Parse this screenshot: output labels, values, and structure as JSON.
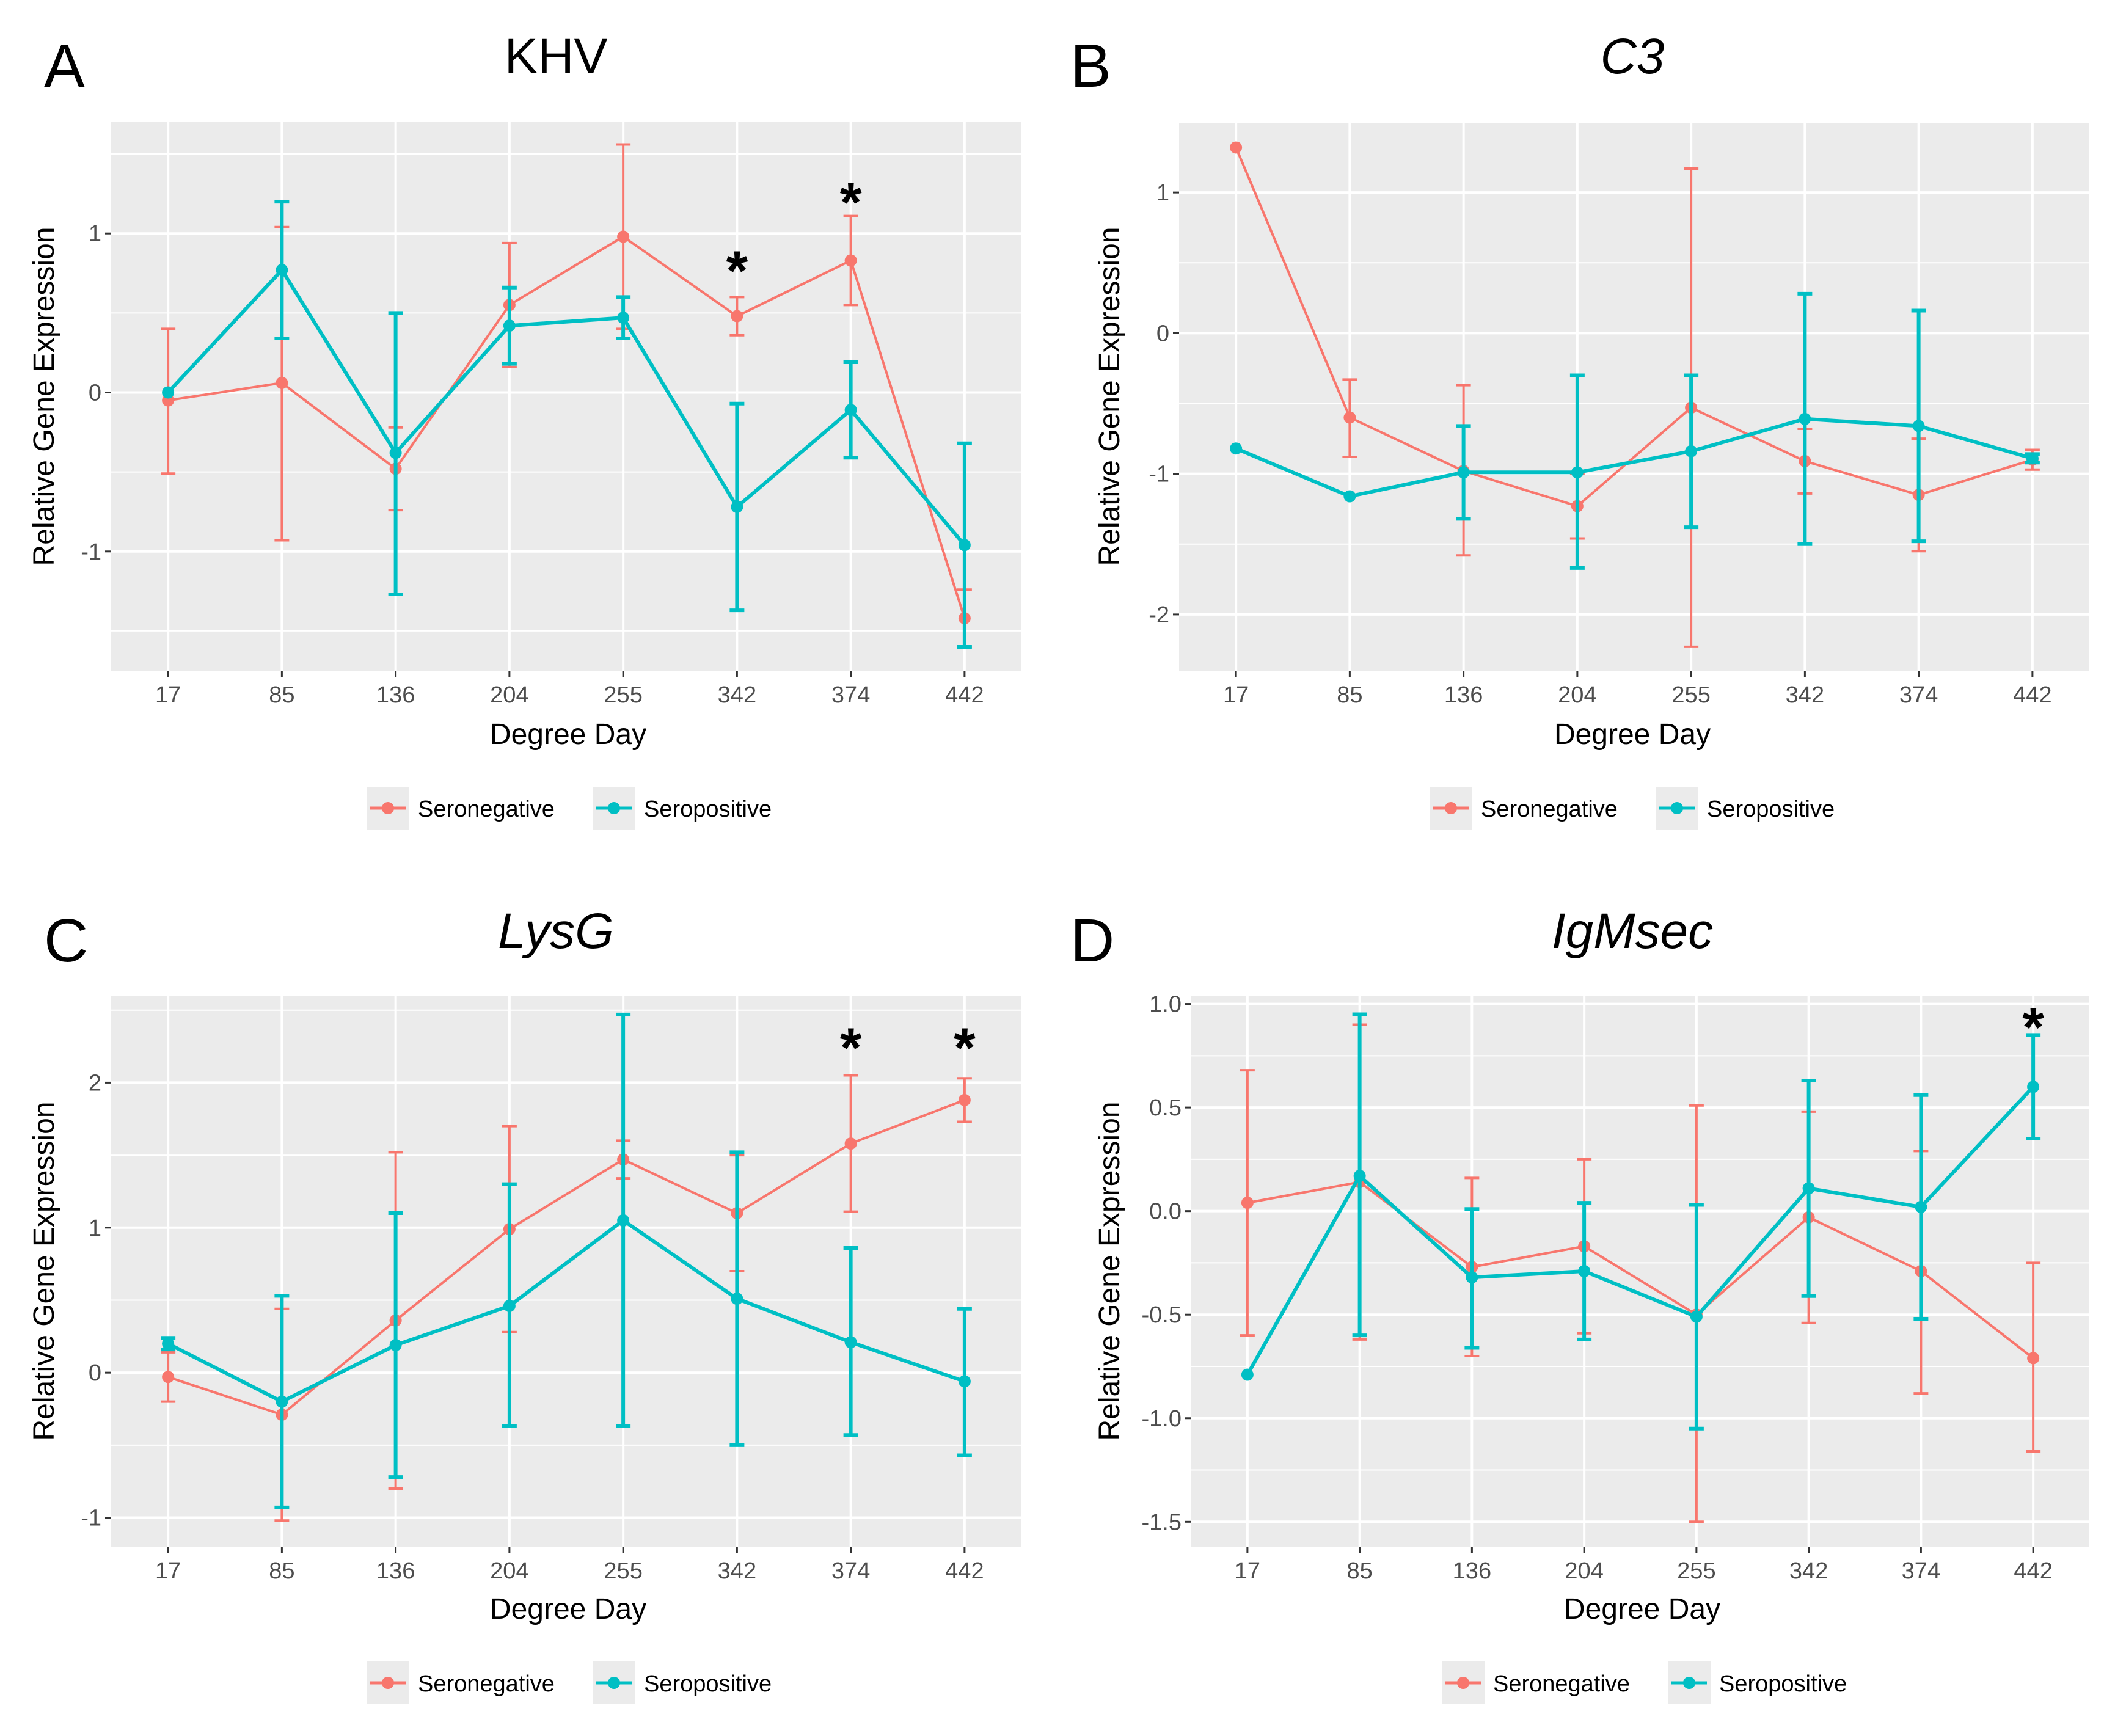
{
  "colors": {
    "seronegative": "#F8766D",
    "seropositive": "#00BFC4",
    "panel_bg": "#EBEBEB",
    "grid": "#FFFFFF"
  },
  "legend": {
    "items": [
      "Seronegative",
      "Seropositive"
    ]
  },
  "chart_data": [
    {
      "letter": "A",
      "title": "KHV",
      "title_italic": false,
      "type": "line",
      "xlabel": "Degree Day",
      "ylabel": "Relative Gene Expression",
      "categories": [
        "17",
        "85",
        "136",
        "204",
        "255",
        "342",
        "374",
        "442"
      ],
      "ylim": [
        -1.75,
        1.7
      ],
      "yticks": [
        -1,
        0,
        1
      ],
      "ytick_labels": [
        "-1",
        "0",
        "1"
      ],
      "series": [
        {
          "name": "Seronegative",
          "values": [
            -0.05,
            0.06,
            -0.48,
            0.55,
            0.98,
            0.48,
            0.83,
            -1.42
          ],
          "lower": [
            -0.51,
            -0.93,
            -0.74,
            0.16,
            0.4,
            0.36,
            0.55,
            -1.6
          ],
          "upper": [
            0.4,
            1.04,
            -0.22,
            0.94,
            1.56,
            0.6,
            1.11,
            -1.24
          ]
        },
        {
          "name": "Seropositive",
          "values": [
            0.0,
            0.77,
            -0.38,
            0.42,
            0.47,
            -0.72,
            -0.11,
            -0.96
          ],
          "lower": [
            0.0,
            0.34,
            -1.27,
            0.18,
            0.34,
            -1.37,
            -0.41,
            -1.6
          ],
          "upper": [
            0.0,
            1.2,
            0.5,
            0.66,
            0.6,
            -0.07,
            0.19,
            -0.32
          ]
        }
      ],
      "annotations": [
        {
          "label": "*",
          "x": "342",
          "y": 0.82
        },
        {
          "label": "*",
          "x": "374",
          "y": 1.25
        }
      ]
    },
    {
      "letter": "B",
      "title": "C3",
      "title_italic": true,
      "type": "line",
      "xlabel": "Degree Day",
      "ylabel": "Relative Gene Expression",
      "categories": [
        "17",
        "85",
        "136",
        "204",
        "255",
        "342",
        "374",
        "442"
      ],
      "ylim": [
        -2.4,
        1.5
      ],
      "yticks": [
        -2,
        -1,
        0,
        1
      ],
      "ytick_labels": [
        "-2",
        "-1",
        "0",
        "1"
      ],
      "series": [
        {
          "name": "Seronegative",
          "values": [
            1.32,
            -0.6,
            -0.98,
            -1.23,
            -0.53,
            -0.91,
            -1.15,
            -0.9
          ],
          "lower": [
            1.32,
            -0.88,
            -1.58,
            -1.46,
            -2.23,
            -1.14,
            -1.55,
            -0.97
          ],
          "upper": [
            1.32,
            -0.33,
            -0.37,
            -1.0,
            1.17,
            -0.68,
            -0.75,
            -0.83
          ]
        },
        {
          "name": "Seropositive",
          "values": [
            -0.82,
            -1.16,
            -0.99,
            -0.99,
            -0.84,
            -0.61,
            -0.66,
            -0.89
          ],
          "lower": [
            -0.82,
            -1.16,
            -1.32,
            -1.67,
            -1.38,
            -1.5,
            -1.48,
            -0.92
          ],
          "upper": [
            -0.82,
            -1.16,
            -0.66,
            -0.3,
            -0.3,
            0.28,
            0.16,
            -0.86
          ]
        }
      ],
      "annotations": []
    },
    {
      "letter": "C",
      "title": "LysG",
      "title_italic": true,
      "type": "line",
      "xlabel": "Degree Day",
      "ylabel": "Relative Gene Expression",
      "categories": [
        "17",
        "85",
        "136",
        "204",
        "255",
        "342",
        "374",
        "442"
      ],
      "ylim": [
        -1.2,
        2.6
      ],
      "yticks": [
        -1,
        0,
        1,
        2
      ],
      "ytick_labels": [
        "-1",
        "0",
        "1",
        "2"
      ],
      "series": [
        {
          "name": "Seronegative",
          "values": [
            -0.03,
            -0.29,
            0.36,
            0.99,
            1.47,
            1.1,
            1.58,
            1.88
          ],
          "lower": [
            -0.2,
            -1.02,
            -0.8,
            0.28,
            1.34,
            0.7,
            1.11,
            1.73
          ],
          "upper": [
            0.14,
            0.44,
            1.52,
            1.7,
            1.6,
            1.5,
            2.05,
            2.03
          ]
        },
        {
          "name": "Seropositive",
          "values": [
            0.2,
            -0.2,
            0.19,
            0.46,
            1.05,
            0.51,
            0.21,
            -0.06
          ],
          "lower": [
            0.16,
            -0.93,
            -0.72,
            -0.37,
            -0.37,
            -0.5,
            -0.43,
            -0.57
          ],
          "upper": [
            0.24,
            0.53,
            1.1,
            1.3,
            2.47,
            1.52,
            0.86,
            0.44
          ]
        }
      ],
      "annotations": [
        {
          "label": "*",
          "x": "374",
          "y": 2.3
        },
        {
          "label": "*",
          "x": "442",
          "y": 2.3
        }
      ]
    },
    {
      "letter": "D",
      "title": "IgMsec",
      "title_italic": true,
      "type": "line",
      "xlabel": "Degree Day",
      "ylabel": "Relative Gene Expression",
      "categories": [
        "17",
        "85",
        "136",
        "204",
        "255",
        "342",
        "374",
        "442"
      ],
      "ylim": [
        -1.62,
        1.04
      ],
      "yticks": [
        -1.5,
        -1.0,
        -0.5,
        0.0,
        0.5,
        1.0
      ],
      "ytick_labels": [
        "-1.5",
        "-1.0",
        "-0.5",
        "0.0",
        "0.5",
        "1.0"
      ],
      "series": [
        {
          "name": "Seronegative",
          "values": [
            0.04,
            0.14,
            -0.27,
            -0.17,
            -0.5,
            -0.03,
            -0.29,
            -0.71
          ],
          "lower": [
            -0.6,
            -0.62,
            -0.7,
            -0.59,
            -1.5,
            -0.54,
            -0.88,
            -1.16
          ],
          "upper": [
            0.68,
            0.9,
            0.16,
            0.25,
            0.51,
            0.48,
            0.29,
            -0.25
          ]
        },
        {
          "name": "Seropositive",
          "values": [
            -0.79,
            0.17,
            -0.32,
            -0.29,
            -0.51,
            0.11,
            0.02,
            0.6
          ],
          "lower": [
            -0.79,
            -0.6,
            -0.66,
            -0.62,
            -1.05,
            -0.41,
            -0.52,
            0.35
          ],
          "upper": [
            -0.79,
            0.95,
            0.01,
            0.04,
            0.03,
            0.63,
            0.56,
            0.85
          ]
        }
      ],
      "annotations": [
        {
          "label": "*",
          "x": "442",
          "y": 0.93
        }
      ]
    }
  ]
}
